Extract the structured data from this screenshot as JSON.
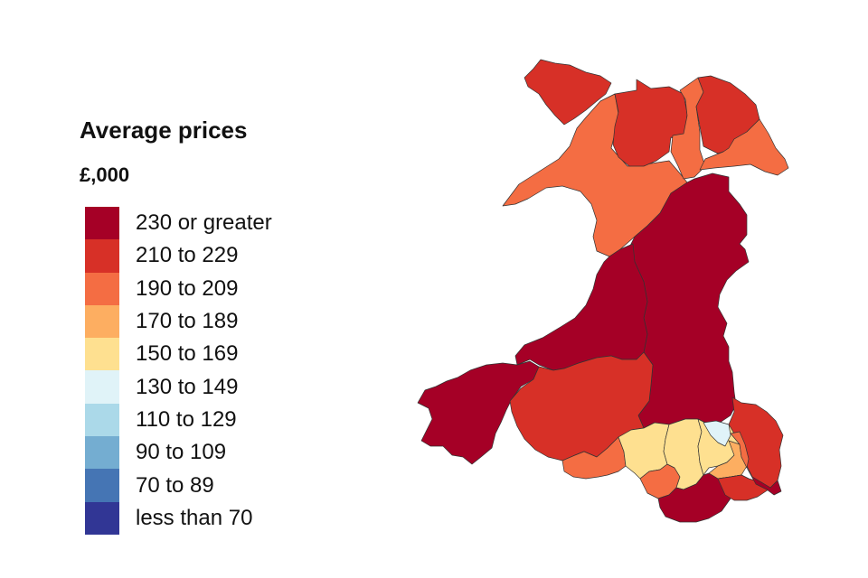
{
  "legend": {
    "title": "Average prices",
    "unit": "£,000",
    "items": [
      {
        "label": "230 or greater",
        "color": "#a50026"
      },
      {
        "label": "210 to 229",
        "color": "#d73027"
      },
      {
        "label": "190 to 209",
        "color": "#f46d43"
      },
      {
        "label": "170 to 189",
        "color": "#fdae61"
      },
      {
        "label": "150 to 169",
        "color": "#fee090"
      },
      {
        "label": "130 to 149",
        "color": "#e0f3f8"
      },
      {
        "label": "110 to 129",
        "color": "#abd9e9"
      },
      {
        "label": "90 to 109",
        "color": "#74add1"
      },
      {
        "label": "70 to 89",
        "color": "#4575b4"
      },
      {
        "label": "less than 70",
        "color": "#313695"
      }
    ]
  },
  "map": {
    "regions": [
      {
        "band": "210 to 229",
        "color": "#d73027"
      },
      {
        "band": "190 to 209",
        "color": "#f46d43"
      },
      {
        "band": "210 to 229",
        "color": "#d73027"
      },
      {
        "band": "190 to 209",
        "color": "#f46d43"
      },
      {
        "band": "210 to 229",
        "color": "#d73027"
      },
      {
        "band": "190 to 209",
        "color": "#f46d43"
      },
      {
        "band": "230 or greater",
        "color": "#a50026"
      },
      {
        "band": "230 or greater",
        "color": "#a50026"
      },
      {
        "band": "230 or greater",
        "color": "#a50026"
      },
      {
        "band": "210 to 229",
        "color": "#d73027"
      },
      {
        "band": "210 to 229",
        "color": "#d73027"
      },
      {
        "band": "190 to 209",
        "color": "#f46d43"
      },
      {
        "band": "150 to 169",
        "color": "#fee090"
      },
      {
        "band": "190 to 209",
        "color": "#f46d43"
      },
      {
        "band": "150 to 169",
        "color": "#fee090"
      },
      {
        "band": "150 to 169",
        "color": "#fee090"
      },
      {
        "band": "130 to 149",
        "color": "#e0f3f8"
      },
      {
        "band": "170 to 189",
        "color": "#fdae61"
      },
      {
        "band": "190 to 209",
        "color": "#f46d43"
      },
      {
        "band": "230 or greater",
        "color": "#a50026"
      },
      {
        "band": "210 to 229",
        "color": "#d73027"
      },
      {
        "band": "230 or greater",
        "color": "#a50026"
      }
    ]
  }
}
